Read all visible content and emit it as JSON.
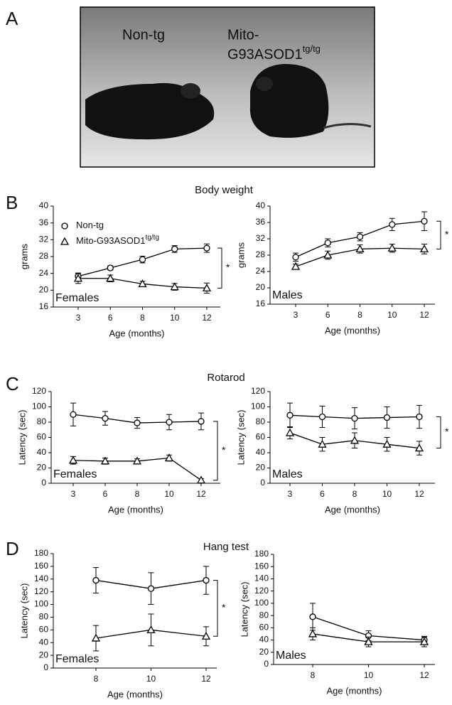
{
  "figure": {
    "panel_labels": [
      "A",
      "B",
      "C",
      "D"
    ],
    "section_titles": [
      "Body weight",
      "Rotarod",
      "Hang test"
    ],
    "photo_labels": {
      "left": "Non-tg",
      "right_line1": "Mito-",
      "right_line2": "G93ASOD1",
      "right_superscript": "tg/tg"
    }
  },
  "chart_data": [
    {
      "type": "line",
      "categories": [
        "3",
        "6",
        "8",
        "10",
        "12"
      ],
      "ylim": [
        16,
        40
      ],
      "yticks": [
        16,
        20,
        24,
        28,
        32,
        36,
        40
      ],
      "ylabel": "grams",
      "xlabel": "Age (months)",
      "label": "Females",
      "significance": "*",
      "legend": true,
      "series": [
        {
          "name": "Non-tg",
          "marker": "circle",
          "color": "#000000",
          "values": [
            23.3,
            25.3,
            27.3,
            29.8,
            30.0
          ],
          "errors": [
            0.8,
            0.5,
            0.8,
            0.8,
            1.0
          ]
        },
        {
          "name": "Mito-G93ASOD1",
          "name_superscript": "tg/tg",
          "marker": "triangle",
          "color": "#000000",
          "values": [
            22.8,
            22.8,
            21.5,
            20.8,
            20.5
          ],
          "errors": [
            1.2,
            0.8,
            0.6,
            0.8,
            1.2
          ]
        }
      ]
    },
    {
      "type": "line",
      "categories": [
        "3",
        "6",
        "8",
        "10",
        "12"
      ],
      "ylim": [
        16,
        40
      ],
      "yticks": [
        16,
        20,
        24,
        28,
        32,
        36,
        40
      ],
      "ylabel": "grams",
      "xlabel": "Age (months)",
      "label": "Males",
      "significance": "*",
      "series": [
        {
          "marker": "circle",
          "color": "#000000",
          "values": [
            27.5,
            31.0,
            32.5,
            35.5,
            36.3
          ],
          "errors": [
            1.0,
            1.0,
            1.0,
            1.5,
            2.3
          ]
        },
        {
          "marker": "triangle",
          "color": "#000000",
          "values": [
            25.2,
            28.0,
            29.5,
            29.7,
            29.5
          ],
          "errors": [
            0.6,
            1.0,
            1.0,
            1.0,
            1.2
          ]
        }
      ]
    },
    {
      "type": "line",
      "categories": [
        "3",
        "6",
        "8",
        "10",
        "12"
      ],
      "ylim": [
        0,
        120
      ],
      "yticks": [
        0,
        20,
        40,
        60,
        80,
        100,
        120
      ],
      "ylabel": "Latency (sec)",
      "xlabel": "Age (months)",
      "label": "Females",
      "significance": "*",
      "series": [
        {
          "marker": "circle",
          "color": "#000000",
          "values": [
            90,
            85,
            79,
            80,
            81
          ],
          "errors": [
            15,
            9,
            7,
            10,
            11
          ]
        },
        {
          "marker": "triangle",
          "color": "#000000",
          "values": [
            30,
            29,
            29,
            33,
            4
          ],
          "errors": [
            5,
            4,
            3,
            4,
            2
          ]
        }
      ]
    },
    {
      "type": "line",
      "categories": [
        "3",
        "6",
        "8",
        "10",
        "12"
      ],
      "ylim": [
        0,
        120
      ],
      "yticks": [
        0,
        20,
        40,
        60,
        80,
        100,
        120
      ],
      "ylabel": "Latency (sec)",
      "xlabel": "Age (months)",
      "label": "Males",
      "significance": "*",
      "series": [
        {
          "marker": "circle",
          "color": "#000000",
          "values": [
            89,
            87,
            85,
            86,
            87
          ],
          "errors": [
            16,
            14,
            14,
            14,
            15
          ]
        },
        {
          "marker": "triangle",
          "color": "#000000",
          "values": [
            66,
            51,
            56,
            51,
            46
          ],
          "errors": [
            8,
            9,
            10,
            9,
            9
          ]
        }
      ]
    },
    {
      "type": "line",
      "categories": [
        "8",
        "10",
        "12"
      ],
      "ylim": [
        0,
        180
      ],
      "yticks": [
        0,
        20,
        40,
        60,
        80,
        100,
        120,
        140,
        160,
        180
      ],
      "ylabel": "Latency (sec)",
      "xlabel": "Age (months)",
      "label": "Females",
      "significance": "*",
      "series": [
        {
          "marker": "circle",
          "color": "#000000",
          "values": [
            138,
            125,
            138
          ],
          "errors": [
            20,
            25,
            22
          ]
        },
        {
          "marker": "triangle",
          "color": "#000000",
          "values": [
            47,
            60,
            50
          ],
          "errors": [
            20,
            25,
            15
          ]
        }
      ]
    },
    {
      "type": "line",
      "categories": [
        "8",
        "10",
        "12"
      ],
      "ylim": [
        0,
        180
      ],
      "yticks": [
        0,
        20,
        40,
        60,
        80,
        100,
        120,
        140,
        160,
        180
      ],
      "ylabel": "Latency (sec)",
      "xlabel": "Age (months)",
      "label": "Males",
      "series": [
        {
          "marker": "circle",
          "color": "#000000",
          "values": [
            78,
            47,
            40
          ],
          "errors": [
            22,
            8,
            6
          ]
        },
        {
          "marker": "triangle",
          "color": "#000000",
          "values": [
            50,
            37,
            37
          ],
          "errors": [
            10,
            8,
            8
          ]
        }
      ]
    }
  ]
}
